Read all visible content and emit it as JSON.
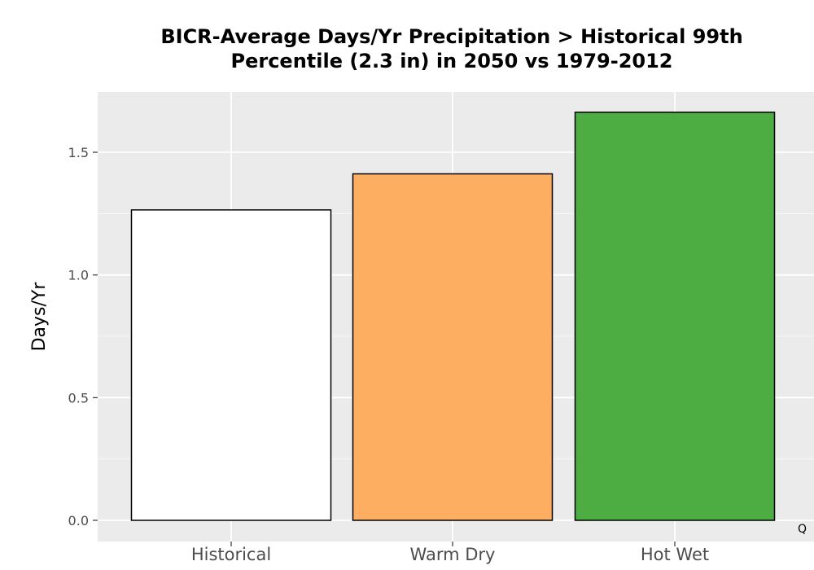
{
  "chart_data": {
    "type": "bar",
    "title_lines": [
      "BICR-Average Days/Yr Precipitation > Historical 99th",
      "Percentile (2.3 in) in 2050 vs 1979-2012"
    ],
    "categories": [
      "Historical",
      "Warm Dry",
      "Hot Wet"
    ],
    "values": [
      1.265,
      1.412,
      1.663
    ],
    "bar_colors": [
      "#ffffff",
      "#fdae61",
      "#4dac42"
    ],
    "xlabel": "",
    "ylabel": "Days/Yr",
    "ylim": [
      -0.08,
      1.75
    ],
    "yticks": [
      0.0,
      0.5,
      1.0,
      1.5
    ],
    "ytick_labels": [
      "0.0",
      "0.5",
      "1.0",
      "1.5"
    ],
    "grid": true,
    "panel_background": "#ebebeb",
    "corner_mark": "Q"
  }
}
